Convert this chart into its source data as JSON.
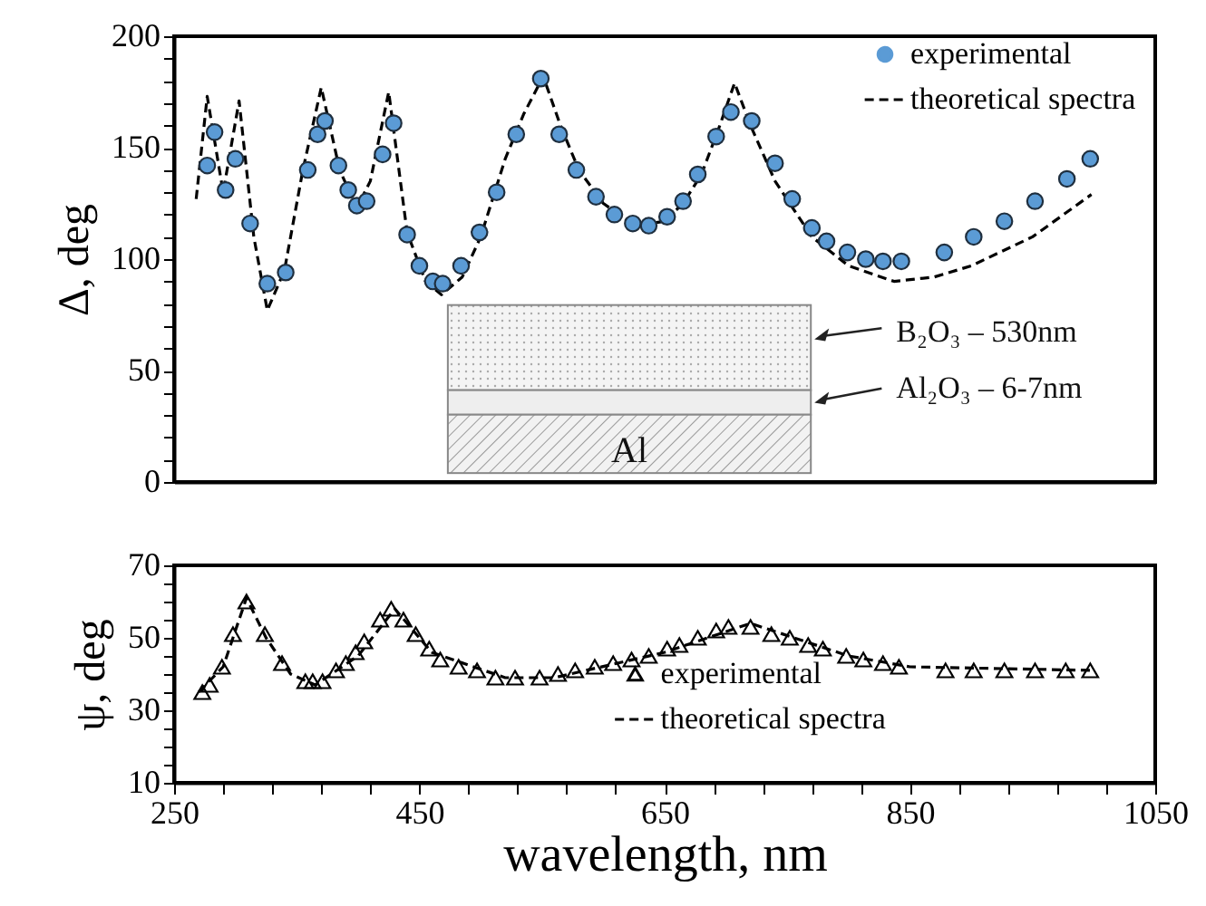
{
  "chart_data": [
    {
      "type": "scatter",
      "ylabel": "Δ, deg",
      "xlim": [
        250,
        1050
      ],
      "ylim": [
        0,
        200
      ],
      "yticks": [
        0,
        {
          "value": 10,
          "label": null
        },
        {
          "value": 20,
          "label": null
        },
        {
          "value": 30,
          "label": null
        },
        {
          "value": 40,
          "label": null
        },
        50,
        {
          "value": 60,
          "label": null
        },
        {
          "value": 70,
          "label": null
        },
        {
          "value": 80,
          "label": null
        },
        {
          "value": 90,
          "label": null
        },
        100,
        {
          "value": 110,
          "label": null
        },
        {
          "value": 120,
          "label": null
        },
        {
          "value": 130,
          "label": null
        },
        {
          "value": 140,
          "label": null
        },
        150,
        {
          "value": 160,
          "label": null
        },
        {
          "value": 170,
          "label": null
        },
        {
          "value": 180,
          "label": null
        },
        {
          "value": 190,
          "label": null
        },
        200
      ],
      "tick_labels": "y",
      "legend": "top right",
      "grid": false,
      "annotations": [
        "B₂O₃ – 530nm",
        "Al₂O₃ – 6-7nm",
        "Al"
      ],
      "series": [
        {
          "name": "experimental",
          "marker": "circle",
          "color": "#5b9bd5",
          "x": [
            277,
            283,
            292,
            300,
            312,
            326,
            341,
            359,
            367,
            373,
            384,
            392,
            399,
            407,
            420,
            429,
            440,
            450,
            461,
            469,
            484,
            499,
            513,
            529,
            549,
            564,
            578,
            594,
            609,
            624,
            637,
            652,
            665,
            677,
            692,
            704,
            721,
            740,
            754,
            770,
            782,
            799,
            814,
            828,
            843,
            878,
            902,
            927,
            952,
            978,
            997
          ],
          "values": [
            142,
            157,
            131,
            145,
            116,
            89,
            94,
            140,
            156,
            162,
            142,
            131,
            124,
            126,
            147,
            161,
            111,
            97,
            90,
            89,
            97,
            112,
            130,
            156,
            181,
            156,
            140,
            128,
            120,
            116,
            115,
            119,
            126,
            138,
            155,
            166,
            162,
            143,
            127,
            114,
            108,
            103,
            100,
            99,
            99,
            103,
            110,
            117,
            126,
            136,
            145
          ]
        },
        {
          "name": "theoretical spectra",
          "type": "line",
          "line_style": "dashed",
          "color": "#000000",
          "x": [
            268,
            277,
            290,
            303,
            315,
            326,
            340,
            355,
            370,
            385,
            399,
            410,
            425,
            440,
            455,
            468,
            485,
            500,
            520,
            535,
            551,
            565,
            580,
            600,
            626,
            650,
            665,
            680,
            695,
            707,
            720,
            740,
            770,
            800,
            837,
            870,
            900,
            950,
            998
          ],
          "values": [
            127,
            173,
            130,
            171,
            110,
            77,
            95,
            140,
            177,
            140,
            123,
            135,
            175,
            112,
            90,
            84,
            92,
            110,
            145,
            165,
            182,
            160,
            140,
            125,
            115,
            117,
            125,
            138,
            160,
            179,
            160,
            135,
            110,
            97,
            90,
            92,
            97,
            110,
            129
          ]
        }
      ]
    },
    {
      "type": "scatter",
      "xlabel": "wavelength, nm",
      "ylabel": "ψ, deg",
      "xlim": [
        250,
        1050
      ],
      "ylim": [
        10,
        70
      ],
      "xticks": [
        250,
        {
          "value": 290,
          "label": null
        },
        {
          "value": 330,
          "label": null
        },
        {
          "value": 370,
          "label": null
        },
        {
          "value": 410,
          "label": null
        },
        450,
        {
          "value": 490,
          "label": null
        },
        {
          "value": 530,
          "label": null
        },
        {
          "value": 570,
          "label": null
        },
        {
          "value": 610,
          "label": null
        },
        650,
        {
          "value": 690,
          "label": null
        },
        {
          "value": 730,
          "label": null
        },
        {
          "value": 770,
          "label": null
        },
        {
          "value": 810,
          "label": null
        },
        850,
        {
          "value": 890,
          "label": null
        },
        {
          "value": 930,
          "label": null
        },
        {
          "value": 970,
          "label": null
        },
        {
          "value": 1010,
          "label": null
        },
        1050
      ],
      "yticks": [
        10,
        {
          "value": 15,
          "label": null
        },
        {
          "value": 20,
          "label": null
        },
        {
          "value": 25,
          "label": null
        },
        30,
        {
          "value": 35,
          "label": null
        },
        {
          "value": 40,
          "label": null
        },
        {
          "value": 45,
          "label": null
        },
        50,
        {
          "value": 55,
          "label": null
        },
        {
          "value": 60,
          "label": null
        },
        {
          "value": 65,
          "label": null
        },
        70
      ],
      "legend": "bottom",
      "grid": false,
      "series": [
        {
          "name": "experimental",
          "marker": "triangle",
          "color": "#000000",
          "x": [
            273,
            279,
            289,
            298,
            309,
            324,
            338,
            357,
            363,
            371,
            382,
            390,
            398,
            405,
            418,
            427,
            437,
            447,
            458,
            467,
            482,
            497,
            512,
            528,
            548,
            563,
            577,
            593,
            608,
            623,
            637,
            652,
            662,
            677,
            692,
            702,
            720,
            737,
            752,
            767,
            779,
            798,
            812,
            828,
            841,
            879,
            902,
            927,
            952,
            977,
            997
          ],
          "values": [
            35,
            37,
            42,
            51,
            60,
            51,
            43,
            38,
            38,
            38,
            41,
            43,
            46,
            49,
            55,
            58,
            55,
            51,
            47,
            44,
            42,
            41,
            39,
            39,
            39,
            40,
            41,
            42,
            43,
            44,
            45,
            47,
            48,
            50,
            52,
            53,
            53,
            51,
            50,
            48,
            47,
            45,
            44,
            43,
            42,
            41,
            41,
            41,
            41,
            41,
            41
          ]
        },
        {
          "name": "theoretical spectra",
          "type": "line",
          "line_style": "dashed",
          "color": "#000000",
          "x": [
            270,
            290,
            309,
            325,
            345,
            365,
            400,
            430,
            460,
            520,
            560,
            650,
            720,
            800,
            850,
            1000
          ],
          "values": [
            35,
            42,
            61,
            50,
            40,
            37,
            45,
            58,
            46,
            39,
            39,
            46,
            54,
            45,
            42,
            41
          ]
        }
      ]
    }
  ]
}
